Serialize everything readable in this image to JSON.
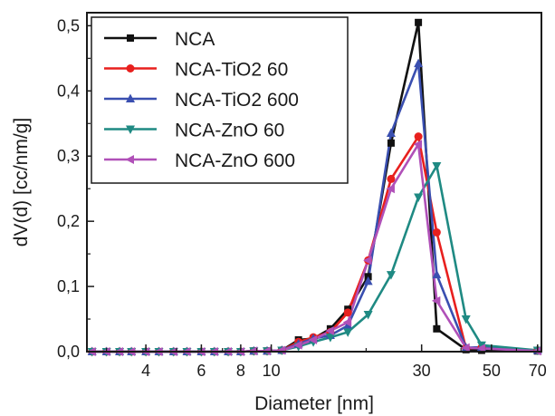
{
  "chart_data": {
    "type": "line",
    "xlabel": "Diameter [nm]",
    "ylabel": "dV(d) [cc/nm/g]",
    "x_scale": "log",
    "xlim": [
      2.6,
      72
    ],
    "ylim": [
      0,
      0.52
    ],
    "x_ticks": [
      {
        "value": 4,
        "label": "4"
      },
      {
        "value": 6,
        "label": "6"
      },
      {
        "value": 8,
        "label": "8"
      },
      {
        "value": 10,
        "label": "10"
      },
      {
        "value": 30,
        "label": "30"
      },
      {
        "value": 50,
        "label": "50"
      },
      {
        "value": 70,
        "label": "70"
      }
    ],
    "y_ticks": [
      {
        "value": 0.0,
        "label": "0,0"
      },
      {
        "value": 0.1,
        "label": "0,1"
      },
      {
        "value": 0.2,
        "label": "0,2"
      },
      {
        "value": 0.3,
        "label": "0,3"
      },
      {
        "value": 0.4,
        "label": "0,4"
      },
      {
        "value": 0.5,
        "label": "0,5"
      }
    ],
    "legend_position": "top-left",
    "grid": false,
    "series": [
      {
        "name": "NCA",
        "color": "#111111",
        "marker": "square",
        "x": [
          2.7,
          3.0,
          3.3,
          3.6,
          4.0,
          4.4,
          4.9,
          5.4,
          6.0,
          6.6,
          7.3,
          8.0,
          8.8,
          9.7,
          10.8,
          12.2,
          13.6,
          15.4,
          17.5,
          20.3,
          24.0,
          29.3,
          33.5,
          41.5,
          46.5,
          70.0
        ],
        "y": [
          0,
          0,
          0,
          0,
          0,
          0,
          0,
          0,
          0,
          0,
          0,
          0,
          0.001,
          0.001,
          0.002,
          0.018,
          0.02,
          0.035,
          0.065,
          0.115,
          0.32,
          0.505,
          0.035,
          0.003,
          0.002,
          0.001
        ]
      },
      {
        "name": "NCA-TiO2 60",
        "color": "#e8201e",
        "marker": "circle",
        "x": [
          2.7,
          3.0,
          3.3,
          3.6,
          4.0,
          4.4,
          4.9,
          5.4,
          6.0,
          6.6,
          7.3,
          8.0,
          8.8,
          9.7,
          10.8,
          12.2,
          13.6,
          15.4,
          17.5,
          20.3,
          24.0,
          29.3,
          33.5,
          41.5,
          46.5,
          70.0
        ],
        "y": [
          0,
          0,
          0,
          0,
          0,
          0,
          0,
          0,
          0,
          0,
          0,
          0,
          0.001,
          0.001,
          0.002,
          0.015,
          0.022,
          0.03,
          0.06,
          0.14,
          0.265,
          0.33,
          0.183,
          0.005,
          0.006,
          0.002
        ]
      },
      {
        "name": "NCA-TiO2 600",
        "color": "#3a4fb0",
        "marker": "triangle-up",
        "x": [
          2.7,
          3.0,
          3.3,
          3.6,
          4.0,
          4.4,
          4.9,
          5.4,
          6.0,
          6.6,
          7.3,
          8.0,
          8.8,
          9.7,
          10.8,
          12.2,
          13.6,
          15.4,
          17.5,
          20.3,
          24.0,
          29.3,
          33.5,
          41.5,
          46.5,
          70.0
        ],
        "y": [
          0,
          0,
          0,
          0,
          0,
          0,
          0,
          0,
          0,
          0,
          0,
          0,
          0.001,
          0.001,
          0.002,
          0.012,
          0.02,
          0.025,
          0.04,
          0.108,
          0.335,
          0.442,
          0.118,
          0.006,
          0.007,
          0.002
        ]
      },
      {
        "name": "NCA-ZnO 60",
        "color": "#1f8a83",
        "marker": "triangle-down",
        "x": [
          2.7,
          3.0,
          3.3,
          3.6,
          4.0,
          4.4,
          4.9,
          5.4,
          6.0,
          6.6,
          7.3,
          8.0,
          8.8,
          9.7,
          10.8,
          12.2,
          13.6,
          15.4,
          17.5,
          20.3,
          24.0,
          29.3,
          33.5,
          41.5,
          46.5,
          70.0
        ],
        "y": [
          0,
          0,
          0,
          0,
          0,
          0,
          0,
          0,
          0,
          0,
          0,
          0,
          0.001,
          0.001,
          0.002,
          0.008,
          0.015,
          0.022,
          0.03,
          0.057,
          0.118,
          0.237,
          0.285,
          0.05,
          0.01,
          0.002
        ]
      },
      {
        "name": "NCA-ZnO 600",
        "color": "#b050b8",
        "marker": "triangle-left",
        "x": [
          2.7,
          3.0,
          3.3,
          3.6,
          4.0,
          4.4,
          4.9,
          5.4,
          6.0,
          6.6,
          7.3,
          8.0,
          8.8,
          9.7,
          10.8,
          12.2,
          13.6,
          15.4,
          17.5,
          20.3,
          24.0,
          29.3,
          33.5,
          41.5,
          46.5,
          70.0
        ],
        "y": [
          0,
          0,
          0,
          0,
          0,
          0,
          0,
          0,
          0,
          0,
          0,
          0,
          0.001,
          0.001,
          0.002,
          0.01,
          0.018,
          0.032,
          0.045,
          0.14,
          0.25,
          0.318,
          0.078,
          0.006,
          0.005,
          0.001
        ]
      }
    ]
  }
}
